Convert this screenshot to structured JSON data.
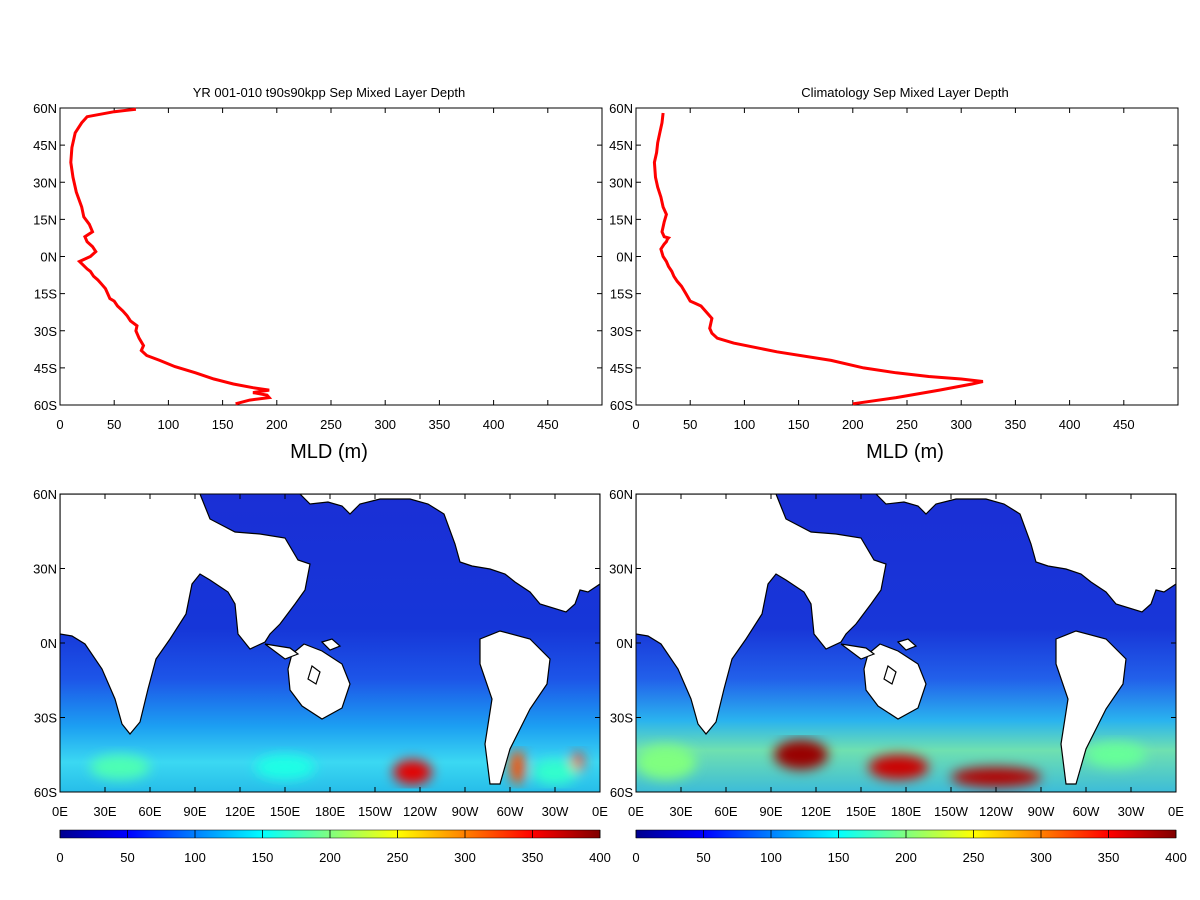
{
  "chart_data": [
    {
      "type": "line",
      "title": "YR 001-010 t90s90kpp Sep Mixed Layer Depth",
      "xlabel": "MLD (m)",
      "ylabel": "",
      "xlim": [
        0,
        500
      ],
      "ylim": [
        -60,
        60
      ],
      "xticks": [
        "0",
        "50",
        "100",
        "150",
        "200",
        "250",
        "300",
        "350",
        "400",
        "450"
      ],
      "yticks": [
        "60N",
        "45N",
        "30N",
        "15N",
        "0N",
        "15S",
        "30S",
        "45S",
        "60S"
      ],
      "grid": false,
      "line_color": "#ff0000",
      "series": [
        {
          "x": [
            162,
            175,
            193,
            191,
            178,
            193,
            178,
            160,
            142,
            125,
            106,
            92,
            80,
            75,
            77,
            73,
            70,
            71,
            65,
            62,
            58,
            53,
            50,
            46,
            44,
            42,
            38,
            35,
            31,
            28,
            25,
            18,
            28,
            33,
            30,
            25,
            23,
            30,
            27,
            22,
            20,
            15,
            12,
            10,
            11,
            14,
            20,
            25,
            50,
            70
          ],
          "y": [
            -59.5,
            -58,
            -57,
            -56,
            -55,
            -54,
            -53,
            -51.5,
            -49.5,
            -47,
            -44.5,
            -42,
            -40,
            -38,
            -36,
            -33,
            -30,
            -28,
            -26,
            -24,
            -22,
            -20,
            -18,
            -17,
            -15,
            -13,
            -11,
            -9.5,
            -8,
            -6,
            -5,
            -2,
            0,
            2,
            4,
            6,
            8,
            10,
            13,
            16,
            20,
            26,
            32,
            38,
            44,
            50,
            54,
            56.5,
            58.5,
            59.5
          ]
        }
      ]
    },
    {
      "type": "line",
      "title": "Climatology Sep Mixed Layer Depth",
      "xlabel": "MLD (m)",
      "ylabel": "",
      "xlim": [
        0,
        500
      ],
      "ylim": [
        -60,
        60
      ],
      "xticks": [
        "0",
        "50",
        "100",
        "150",
        "200",
        "250",
        "300",
        "350",
        "400",
        "450"
      ],
      "yticks": [
        "60N",
        "45N",
        "30N",
        "15N",
        "0N",
        "15S",
        "30S",
        "45S",
        "60S"
      ],
      "grid": false,
      "line_color": "#ff0000",
      "series": [
        {
          "x": [
            200,
            240,
            280,
            310,
            320,
            300,
            270,
            240,
            210,
            180,
            130,
            90,
            75,
            70,
            68,
            70,
            66,
            60,
            55,
            50,
            46,
            42,
            38,
            35,
            33,
            30,
            28,
            25,
            23,
            26,
            28,
            29,
            30,
            26,
            24,
            26,
            28,
            25,
            23,
            20,
            18,
            17,
            19,
            20,
            22,
            24,
            25
          ],
          "y": [
            -59.5,
            -57,
            -54,
            -51.5,
            -50.5,
            -49.5,
            -48.5,
            -47,
            -45,
            -42,
            -38.5,
            -35,
            -33,
            -31,
            -29,
            -25,
            -23,
            -20,
            -19,
            -18,
            -15,
            -12,
            -10,
            -8,
            -6,
            -4,
            -2,
            0,
            3,
            5,
            6,
            7,
            7.5,
            8,
            10,
            14,
            17,
            20,
            24,
            28,
            32,
            38,
            42,
            46,
            50,
            54,
            58
          ]
        }
      ]
    },
    {
      "type": "heatmap",
      "title": "",
      "xticks": [
        "0E",
        "30E",
        "60E",
        "90E",
        "120E",
        "150E",
        "180E",
        "150W",
        "120W",
        "90W",
        "60W",
        "30W",
        "0E"
      ],
      "yticks": [
        "60N",
        "30N",
        "0N",
        "30S",
        "60S"
      ],
      "xlim": [
        0,
        360
      ],
      "ylim": [
        -60,
        60
      ],
      "colorbar_ticks": [
        "0",
        "50",
        "100",
        "150",
        "200",
        "250",
        "300",
        "350",
        "400"
      ],
      "colorbar_range": [
        0,
        400
      ],
      "colormap": "jet",
      "features": [
        {
          "lon": 235,
          "lat": -52,
          "w": 26,
          "h": 10,
          "v": 360
        },
        {
          "lon": 345,
          "lat": -48,
          "w": 8,
          "h": 8,
          "v": 330
        },
        {
          "lon": 305,
          "lat": -50,
          "w": 10,
          "h": 14,
          "v": 320
        },
        {
          "lon": 40,
          "lat": -50,
          "w": 40,
          "h": 10,
          "v": 180
        },
        {
          "lon": 150,
          "lat": -50,
          "w": 40,
          "h": 10,
          "v": 160
        },
        {
          "lon": 330,
          "lat": -52,
          "w": 30,
          "h": 10,
          "v": 170
        }
      ]
    },
    {
      "type": "heatmap",
      "title": "",
      "xticks": [
        "0E",
        "30E",
        "60E",
        "90E",
        "120E",
        "150E",
        "180E",
        "150W",
        "120W",
        "90W",
        "60W",
        "30W",
        "0E"
      ],
      "yticks": [
        "60N",
        "30N",
        "0N",
        "30S",
        "60S"
      ],
      "xlim": [
        0,
        360
      ],
      "ylim": [
        -60,
        60
      ],
      "colorbar_ticks": [
        "0",
        "50",
        "100",
        "150",
        "200",
        "250",
        "300",
        "350",
        "400"
      ],
      "colorbar_range": [
        0,
        400
      ],
      "colormap": "jet",
      "features": [
        {
          "lon": 110,
          "lat": -45,
          "w": 36,
          "h": 12,
          "v": 390
        },
        {
          "lon": 175,
          "lat": -50,
          "w": 40,
          "h": 10,
          "v": 370
        },
        {
          "lon": 240,
          "lat": -54,
          "w": 60,
          "h": 8,
          "v": 380
        },
        {
          "lon": 20,
          "lat": -48,
          "w": 40,
          "h": 14,
          "v": 200
        },
        {
          "lon": 320,
          "lat": -45,
          "w": 40,
          "h": 10,
          "v": 190
        }
      ]
    }
  ]
}
